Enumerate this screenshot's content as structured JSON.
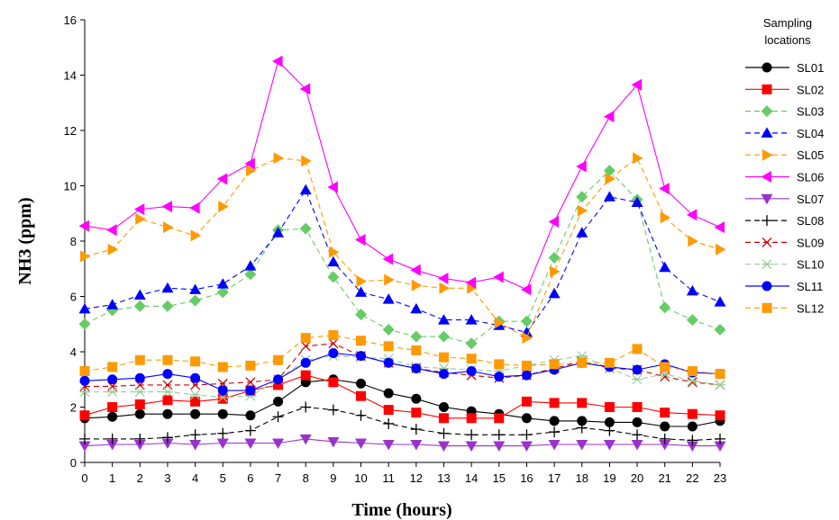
{
  "chart_data": {
    "type": "line",
    "xlabel": "Time (hours)",
    "ylabel": "NH3 (ppm)",
    "xlim": [
      0,
      23
    ],
    "ylim": [
      0,
      16
    ],
    "x_ticks": [
      0,
      1,
      2,
      3,
      4,
      5,
      6,
      7,
      8,
      9,
      10,
      11,
      12,
      13,
      14,
      15,
      16,
      17,
      18,
      19,
      20,
      21,
      22,
      23
    ],
    "y_ticks": [
      0,
      2,
      4,
      6,
      8,
      10,
      12,
      14,
      16
    ],
    "legend": {
      "title": "Sampling locations",
      "placement": "right"
    },
    "x": [
      0,
      1,
      2,
      3,
      4,
      5,
      6,
      7,
      8,
      9,
      10,
      11,
      12,
      13,
      14,
      15,
      16,
      17,
      18,
      19,
      20,
      21,
      22,
      23
    ],
    "series": [
      {
        "name": "SL01",
        "color": "#000000",
        "marker": "circle",
        "dash": "solid",
        "values": [
          1.6,
          1.65,
          1.75,
          1.75,
          1.75,
          1.75,
          1.7,
          2.2,
          2.9,
          3.0,
          2.85,
          2.5,
          2.3,
          2.0,
          1.85,
          1.75,
          1.6,
          1.5,
          1.5,
          1.45,
          1.45,
          1.3,
          1.3,
          1.5
        ]
      },
      {
        "name": "SL02",
        "color": "#ff0000",
        "marker": "square",
        "dash": "solid",
        "values": [
          1.7,
          2.0,
          2.1,
          2.25,
          2.2,
          2.3,
          2.6,
          2.8,
          3.15,
          2.9,
          2.4,
          1.9,
          1.8,
          1.6,
          1.6,
          1.6,
          2.2,
          2.15,
          2.15,
          2.0,
          2.0,
          1.8,
          1.75,
          1.7
        ]
      },
      {
        "name": "SL03",
        "color": "#66cc66",
        "marker": "diamond",
        "dash": "dash",
        "values": [
          5.0,
          5.5,
          5.65,
          5.65,
          5.85,
          6.15,
          6.8,
          8.4,
          8.45,
          6.7,
          5.35,
          4.8,
          4.55,
          4.55,
          4.3,
          5.1,
          5.1,
          7.4,
          9.6,
          10.55,
          9.5,
          5.6,
          5.15,
          4.8
        ]
      },
      {
        "name": "SL04",
        "color": "#0000ff",
        "marker": "triangle-up",
        "dash": "dash",
        "values": [
          5.55,
          5.7,
          6.05,
          6.3,
          6.25,
          6.45,
          7.1,
          8.3,
          9.85,
          7.25,
          6.15,
          5.9,
          5.55,
          5.15,
          5.15,
          4.95,
          4.7,
          6.1,
          8.3,
          9.6,
          9.4,
          7.05,
          6.2,
          5.8
        ]
      },
      {
        "name": "SL05",
        "color": "#ff9900",
        "marker": "triangle-right",
        "dash": "dash",
        "values": [
          7.45,
          7.7,
          8.8,
          8.5,
          8.2,
          9.25,
          10.55,
          11.0,
          10.9,
          7.6,
          6.55,
          6.6,
          6.4,
          6.3,
          6.3,
          5.05,
          4.5,
          6.9,
          9.1,
          10.25,
          11.0,
          8.85,
          8.0,
          7.7
        ]
      },
      {
        "name": "SL06",
        "color": "#ff00ff",
        "marker": "triangle-left",
        "dash": "solid",
        "values": [
          8.55,
          8.4,
          9.15,
          9.25,
          9.2,
          10.25,
          10.8,
          14.5,
          13.5,
          9.95,
          8.05,
          7.35,
          6.95,
          6.65,
          6.5,
          6.7,
          6.25,
          8.7,
          10.7,
          12.5,
          13.65,
          9.9,
          8.95,
          8.5
        ]
      },
      {
        "name": "SL07",
        "color": "#9933cc",
        "marker": "triangle-down",
        "dash": "solid",
        "values": [
          0.6,
          0.65,
          0.65,
          0.7,
          0.65,
          0.7,
          0.7,
          0.7,
          0.85,
          0.75,
          0.7,
          0.65,
          0.65,
          0.6,
          0.6,
          0.6,
          0.6,
          0.65,
          0.65,
          0.65,
          0.65,
          0.65,
          0.6,
          0.6
        ]
      },
      {
        "name": "SL08",
        "color": "#000000",
        "marker": "plus",
        "dash": "dash",
        "values": [
          0.85,
          0.85,
          0.85,
          0.9,
          1.0,
          1.05,
          1.15,
          1.65,
          2.0,
          1.9,
          1.7,
          1.4,
          1.2,
          1.05,
          1.0,
          1.0,
          1.0,
          1.1,
          1.25,
          1.15,
          1.0,
          0.85,
          0.8,
          0.85
        ]
      },
      {
        "name": "SL09",
        "color": "#cc0000",
        "marker": "x",
        "dash": "dash",
        "values": [
          2.75,
          2.75,
          2.8,
          2.8,
          2.8,
          2.85,
          2.9,
          3.0,
          4.2,
          4.3,
          3.85,
          3.6,
          3.4,
          3.25,
          3.15,
          3.05,
          3.15,
          3.4,
          3.65,
          3.4,
          3.35,
          3.1,
          2.9,
          2.8
        ]
      },
      {
        "name": "SL10",
        "color": "#99cc99",
        "marker": "star",
        "dash": "dash",
        "values": [
          2.55,
          2.55,
          2.55,
          2.55,
          2.45,
          2.35,
          2.4,
          3.0,
          3.7,
          3.85,
          3.8,
          3.75,
          3.45,
          3.4,
          3.35,
          3.3,
          3.5,
          3.7,
          3.85,
          3.4,
          3.0,
          3.2,
          2.95,
          2.8
        ]
      },
      {
        "name": "SL11",
        "color": "#0000ff",
        "marker": "circle",
        "dash": "solid",
        "values": [
          2.95,
          3.0,
          3.05,
          3.2,
          3.05,
          2.6,
          2.6,
          3.0,
          3.6,
          3.95,
          3.85,
          3.6,
          3.4,
          3.2,
          3.3,
          3.1,
          3.15,
          3.35,
          3.6,
          3.45,
          3.35,
          3.55,
          3.25,
          3.2
        ]
      },
      {
        "name": "SL12",
        "color": "#ff9900",
        "marker": "square",
        "dash": "dash",
        "values": [
          3.3,
          3.45,
          3.7,
          3.7,
          3.65,
          3.45,
          3.5,
          3.7,
          4.5,
          4.6,
          4.4,
          4.2,
          4.05,
          3.8,
          3.75,
          3.55,
          3.5,
          3.55,
          3.6,
          3.6,
          4.1,
          3.45,
          3.3,
          3.2
        ]
      }
    ]
  }
}
